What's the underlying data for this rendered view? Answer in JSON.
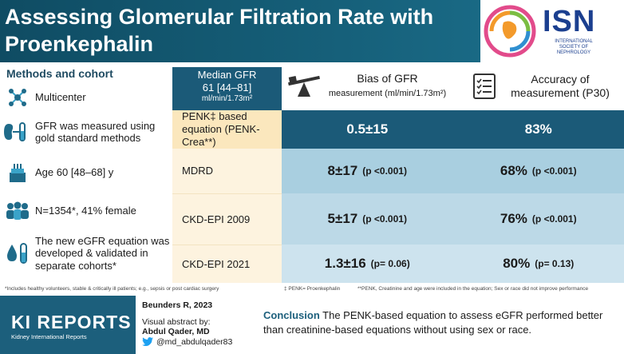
{
  "header": {
    "title_line1": "Assessing Glomerular Filtration Rate with",
    "title_line2": "Proenkephalin",
    "logo_text": "ISN",
    "logo_sub": "INTERNATIONAL SOCIETY OF NEPHROLOGY"
  },
  "methods": {
    "title": "Methods and cohort",
    "items": [
      {
        "icon": "network-icon",
        "text": "Multicenter"
      },
      {
        "icon": "kidney-tube-icon",
        "text": "GFR was measured using gold standard methods"
      },
      {
        "icon": "cake-icon",
        "text": "Age 60 [48–68] y"
      },
      {
        "icon": "people-icon",
        "text": "N=1354*, 41% female"
      },
      {
        "icon": "drop-tube-icon",
        "text": "The new eGFR equation was developed & validated in separate cohorts*"
      }
    ]
  },
  "median": {
    "line1": "Median GFR",
    "line2": "61 [44–81]",
    "line3": "ml/min/1.73m²"
  },
  "columns": {
    "bias_label": "Bias of GFR",
    "bias_sub": "measurement (ml/min/1.73m²)",
    "accuracy_label": "Accuracy of",
    "accuracy_sub": "measurement (P30)"
  },
  "rows": [
    {
      "label": "PENK‡ based equation (PENK-Crea**)",
      "bias": "0.5±15",
      "bias_p": "",
      "accuracy": "83%",
      "accuracy_p": ""
    },
    {
      "label": "MDRD",
      "bias": "8±17",
      "bias_p": "(p <0.001)",
      "accuracy": "68%",
      "accuracy_p": "(p <0.001)"
    },
    {
      "label": "CKD-EPI 2009",
      "bias": "5±17",
      "bias_p": "(p <0.001)",
      "accuracy": "76%",
      "accuracy_p": "(p <0.001)"
    },
    {
      "label": "CKD-EPI 2021",
      "bias": "1.3±16",
      "bias_p": "(p= 0.06)",
      "accuracy": "80%",
      "accuracy_p": "(p= 0.13)"
    }
  ],
  "footnotes": {
    "f1": "*Includes healthy volunteers, stable & critically ill patients; e.g., sepsis or post cardiac surgery",
    "f2": "‡ PENK= Proenkephalin",
    "f3": "**PENK, Creatinine and age were included in the equation; Sex or race did not improve performance"
  },
  "bottom": {
    "journal": "KI REPORTS",
    "journal_sub": "Kidney International Reports",
    "citation": "Beunders R, 2023",
    "abstract_by": "Visual abstract by:",
    "author": "Abdul Qader, MD",
    "handle": "@md_abdulqader83",
    "conclusion_head": "Conclusion",
    "conclusion_text": "The PENK-based equation to assess eGFR performed better than creatinine-based equations without using sex or race."
  },
  "colors": {
    "header": "#16607a",
    "row_dark": "#1b5a78",
    "row_mid": "#a9cfe0",
    "row_light": "#cde3ee",
    "label_highlight": "#fbe7bd",
    "label_light": "#fdf3df"
  }
}
